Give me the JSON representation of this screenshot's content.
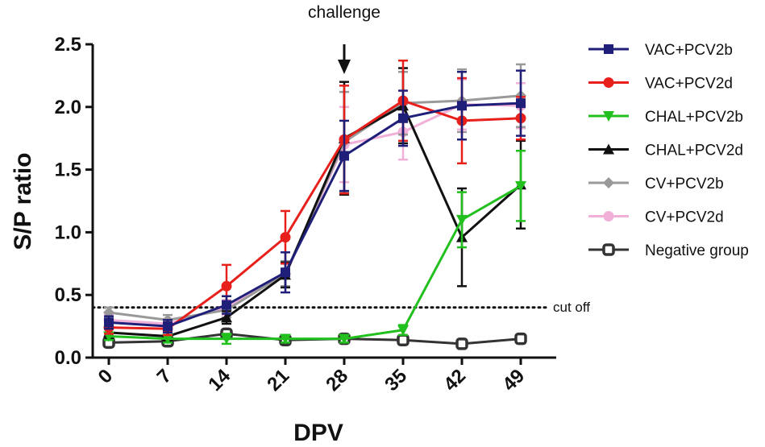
{
  "chart_data": {
    "type": "line",
    "title": "",
    "annotation": "challenge",
    "annotation_x": 28,
    "xlabel": "DPV",
    "ylabel": "S/P ratio",
    "x": [
      0,
      7,
      14,
      21,
      28,
      35,
      42,
      49
    ],
    "x_tick_labels": [
      "0",
      "7",
      "14",
      "21",
      "28",
      "35",
      "42",
      "49"
    ],
    "ylim": [
      0.0,
      2.5
    ],
    "y_ticks": [
      0.0,
      0.5,
      1.0,
      1.5,
      2.0,
      2.5
    ],
    "y_tick_labels": [
      "0.0",
      "0.5",
      "1.0",
      "1.5",
      "2.0",
      "2.5"
    ],
    "cutoff": {
      "value": 0.4,
      "label": "cut off"
    },
    "legend_position": "right",
    "series": [
      {
        "name": "VAC+PCV2b",
        "color": "#1f1f7a",
        "marker": "square",
        "values": [
          0.28,
          0.25,
          0.42,
          0.68,
          1.61,
          1.91,
          2.01,
          2.03
        ],
        "errors": [
          0.05,
          0.05,
          0.07,
          0.16,
          0.28,
          0.22,
          0.27,
          0.26
        ]
      },
      {
        "name": "VAC+PCV2d",
        "color": "#e8201c",
        "marker": "circle",
        "values": [
          0.24,
          0.23,
          0.57,
          0.96,
          1.74,
          2.05,
          1.89,
          1.91
        ],
        "errors": [
          0.05,
          0.05,
          0.17,
          0.21,
          0.43,
          0.32,
          0.34,
          0.17
        ]
      },
      {
        "name": "CHAL+PCV2b",
        "color": "#22c01e",
        "marker": "triangle-down",
        "values": [
          0.17,
          0.15,
          0.15,
          0.15,
          0.15,
          0.22,
          1.1,
          1.37
        ],
        "errors": [
          0.03,
          0.03,
          0.04,
          0.03,
          0.03,
          0.04,
          0.22,
          0.28
        ]
      },
      {
        "name": "CHAL+PCV2d",
        "color": "#111111",
        "marker": "triangle-up",
        "values": [
          0.2,
          0.17,
          0.32,
          0.66,
          1.75,
          2.01,
          0.96,
          1.38
        ],
        "errors": [
          0.05,
          0.04,
          0.05,
          0.1,
          0.45,
          0.3,
          0.39,
          0.35
        ]
      },
      {
        "name": "CV+PCV2b",
        "color": "#999999",
        "marker": "diamond",
        "values": [
          0.36,
          0.3,
          0.38,
          0.67,
          1.72,
          2.03,
          2.05,
          2.09
        ],
        "errors": [
          0.04,
          0.04,
          0.06,
          0.1,
          0.4,
          0.25,
          0.25,
          0.25
        ]
      },
      {
        "name": "CV+PCV2d",
        "color": "#f0b0d8",
        "marker": "circle",
        "values": [
          0.3,
          0.27,
          0.4,
          0.66,
          1.7,
          1.8,
          2.02,
          2.01
        ],
        "errors": [
          0.04,
          0.04,
          0.06,
          0.1,
          0.3,
          0.22,
          0.2,
          0.18
        ]
      },
      {
        "name": "Negative group",
        "color": "#333333",
        "marker": "square-open",
        "values": [
          0.12,
          0.13,
          0.19,
          0.14,
          0.15,
          0.14,
          0.11,
          0.15
        ],
        "errors": [
          0.03,
          0.03,
          0.03,
          0.03,
          0.03,
          0.03,
          0.02,
          0.03
        ]
      }
    ]
  }
}
